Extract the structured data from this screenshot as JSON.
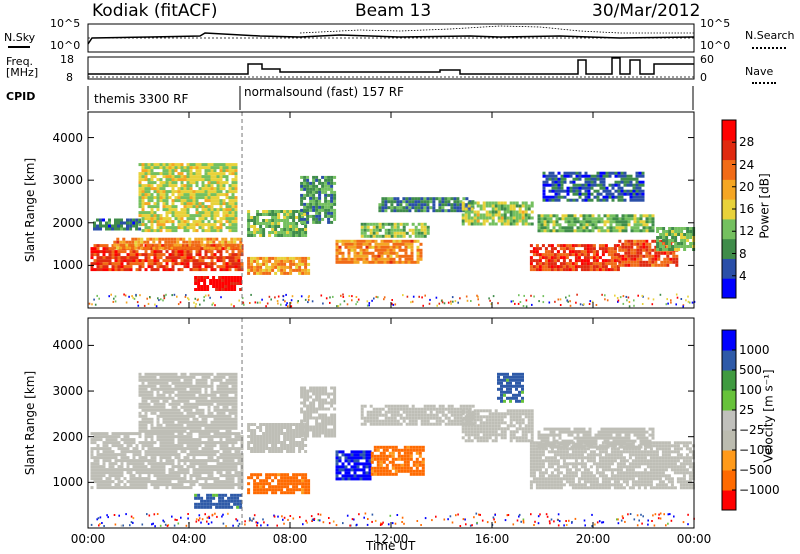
{
  "header": {
    "station": "Kodiak (fitACF)",
    "beam": "Beam 13",
    "date": "30/Mar/2012"
  },
  "top_panels": {
    "nsky_label": "N.Sky",
    "nsky_ticks": [
      "10^5",
      "10^0"
    ],
    "nsearch_label": "N.Search",
    "nsearch_ticks": [
      "10^5",
      "10^0"
    ],
    "freq_label": "Freq.",
    "freq_unit": "[MHz]",
    "freq_ticks": [
      "18",
      "8"
    ],
    "nave_label": "Nave",
    "nave_ticks": [
      "60",
      "0"
    ],
    "cpid_label": "CPID",
    "cpid_segments": [
      {
        "label": "themis 3300 RF",
        "start_hour": 0,
        "end_hour": 6.1
      },
      {
        "label": "normalsound (fast) 157 RF",
        "start_hour": 6.1,
        "end_hour": 24
      }
    ]
  },
  "colors": {
    "power_scale": [
      "#0000ff",
      "#2a4fa8",
      "#3f8c4a",
      "#74c05f",
      "#e8d23a",
      "#f5a623",
      "#f16b16",
      "#e02a10",
      "#ff0000"
    ],
    "velocity_scale": [
      "#ff0000",
      "#ff6a00",
      "#ff9a1a",
      "#bcbcb0",
      "#c0c0bc",
      "#67c23a",
      "#3f9a40",
      "#2e5aa8",
      "#0000ff"
    ],
    "ground_scatter": "#bebeb6"
  },
  "chart_data": [
    {
      "type": "heatmap",
      "ylabel": "Slant Range [km]",
      "y_ticks": [
        "1000",
        "2000",
        "3000",
        "4000"
      ],
      "ylim": [
        0,
        4600
      ],
      "x_ticks": [
        "00:00",
        "04:00",
        "08:00",
        "12:00",
        "16:00",
        "20:00",
        "00:00"
      ],
      "xlim": [
        0,
        24
      ],
      "colorbar_label": "Power [dB]",
      "colorbar_ticks": [
        "28",
        "24",
        "20",
        "16",
        "12",
        "8",
        "4"
      ],
      "colorbar_range": [
        0,
        32
      ],
      "regions": [
        {
          "t0": 0.1,
          "t1": 6.1,
          "r0": 900,
          "r1": 1500,
          "value": 26
        },
        {
          "t0": 1.0,
          "t1": 6.0,
          "r0": 1400,
          "r1": 1650,
          "value": 21
        },
        {
          "t0": 0.2,
          "t1": 2.0,
          "r0": 1850,
          "r1": 2100,
          "value": 7
        },
        {
          "t0": 2.0,
          "t1": 5.9,
          "r0": 1850,
          "r1": 3400,
          "value": 15
        },
        {
          "t0": 4.2,
          "t1": 6.1,
          "r0": 450,
          "r1": 750,
          "value": 31
        },
        {
          "t0": 6.3,
          "t1": 8.7,
          "r0": 800,
          "r1": 1200,
          "value": 20
        },
        {
          "t0": 6.3,
          "t1": 8.6,
          "r0": 1700,
          "r1": 2300,
          "value": 12
        },
        {
          "t0": 8.4,
          "t1": 9.8,
          "r0": 2000,
          "r1": 3100,
          "value": 9
        },
        {
          "t0": 9.8,
          "t1": 13.2,
          "r0": 1100,
          "r1": 1600,
          "value": 21
        },
        {
          "t0": 10.8,
          "t1": 13.5,
          "r0": 1700,
          "r1": 2000,
          "value": 13
        },
        {
          "t0": 11.5,
          "t1": 15.2,
          "r0": 2300,
          "r1": 2600,
          "value": 8
        },
        {
          "t0": 14.8,
          "t1": 17.6,
          "r0": 2000,
          "r1": 2500,
          "value": 14
        },
        {
          "t0": 17.5,
          "t1": 21.0,
          "r0": 900,
          "r1": 1500,
          "value": 26
        },
        {
          "t0": 21.0,
          "t1": 23.3,
          "r0": 1000,
          "r1": 1600,
          "value": 25
        },
        {
          "t0": 17.8,
          "t1": 22.4,
          "r0": 1800,
          "r1": 2200,
          "value": 12
        },
        {
          "t0": 22.5,
          "t1": 24.0,
          "r0": 1400,
          "r1": 1900,
          "value": 12
        },
        {
          "t0": 18.0,
          "t1": 22.0,
          "r0": 2500,
          "r1": 3200,
          "value": 6
        }
      ]
    },
    {
      "type": "heatmap",
      "ylabel": "Slant Range [km]",
      "y_ticks": [
        "1000",
        "2000",
        "3000",
        "4000"
      ],
      "ylim": [
        0,
        4600
      ],
      "x_ticks": [
        "00:00",
        "04:00",
        "08:00",
        "12:00",
        "16:00",
        "20:00",
        "00:00"
      ],
      "xlim": [
        0,
        24
      ],
      "xlabel": "Time UT",
      "colorbar_label": "Velocity [m s⁻¹]",
      "colorbar_ticks": [
        "1000",
        "500",
        "100",
        "25",
        "−25",
        "−100",
        "−500",
        "−1000"
      ],
      "regions": [
        {
          "t0": 0.1,
          "t1": 6.1,
          "r0": 900,
          "r1": 2100,
          "value": 0
        },
        {
          "t0": 2.0,
          "t1": 5.9,
          "r0": 2100,
          "r1": 3400,
          "value": 0
        },
        {
          "t0": 4.2,
          "t1": 6.1,
          "r0": 450,
          "r1": 750,
          "value": 150
        },
        {
          "t0": 6.3,
          "t1": 8.7,
          "r0": 800,
          "r1": 1200,
          "value": -150
        },
        {
          "t0": 6.3,
          "t1": 8.6,
          "r0": 1700,
          "r1": 2300,
          "value": 0
        },
        {
          "t0": 8.4,
          "t1": 9.8,
          "r0": 2000,
          "r1": 3100,
          "value": 0
        },
        {
          "t0": 9.8,
          "t1": 11.2,
          "r0": 1100,
          "r1": 1700,
          "value": 600
        },
        {
          "t0": 11.2,
          "t1": 13.3,
          "r0": 1200,
          "r1": 1800,
          "value": -150
        },
        {
          "t0": 10.8,
          "t1": 15.2,
          "r0": 2300,
          "r1": 2700,
          "value": 0
        },
        {
          "t0": 14.8,
          "t1": 17.6,
          "r0": 1900,
          "r1": 2600,
          "value": 0
        },
        {
          "t0": 16.2,
          "t1": 17.2,
          "r0": 2800,
          "r1": 3400,
          "value": 150
        },
        {
          "t0": 17.5,
          "t1": 24.0,
          "r0": 900,
          "r1": 1900,
          "value": 0
        },
        {
          "t0": 17.8,
          "t1": 22.4,
          "r0": 1800,
          "r1": 2200,
          "value": 0
        }
      ]
    }
  ]
}
